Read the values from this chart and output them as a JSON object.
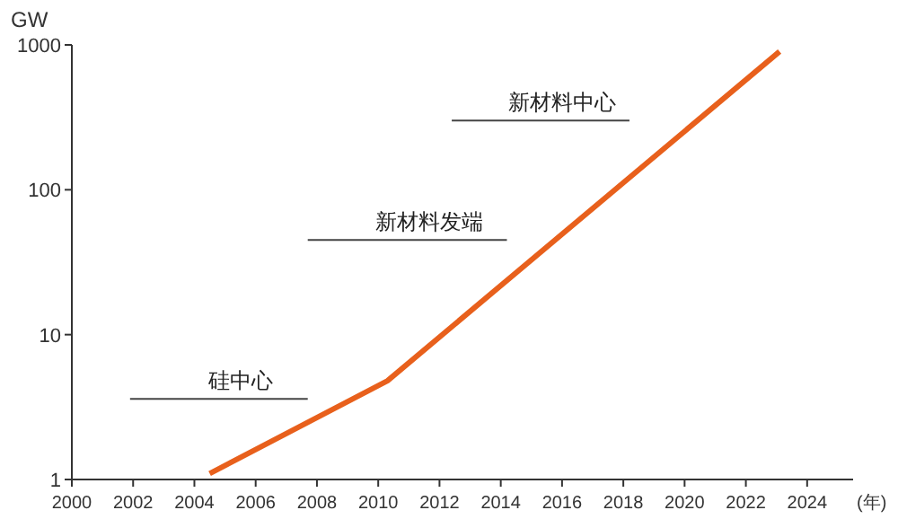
{
  "chart_data": {
    "type": "line",
    "xlabel": "(年)",
    "ylabel": "GW",
    "log": "y",
    "grid": false,
    "legend": false,
    "marker": "none",
    "line_style": "solid",
    "x": [
      2004.5,
      2010.3,
      2023.1
    ],
    "series": [
      {
        "color": "#e8601c",
        "values": [
          1.1,
          4.8,
          900
        ]
      },
      {
        "name": "硅中心",
        "color": "#444444",
        "x": [
          2001.9,
          2007.7
        ],
        "values": [
          3.6,
          3.6
        ]
      },
      {
        "name": "新材料发端",
        "color": "#444444",
        "x": [
          2007.7,
          2014.2
        ],
        "values": [
          45,
          45
        ]
      },
      {
        "name": "新材料中心",
        "color": "#444444",
        "x": [
          2012.4,
          2018.2
        ],
        "values": [
          300,
          300
        ]
      }
    ],
    "xlim": [
      2000,
      2025.5
    ],
    "xticks": [
      2000,
      2002,
      2004,
      2006,
      2008,
      2010,
      2012,
      2014,
      2016,
      2018,
      2020,
      2022,
      2024
    ],
    "ylim": [
      1,
      1000
    ],
    "yticks": [
      1,
      10,
      100,
      1000
    ]
  }
}
